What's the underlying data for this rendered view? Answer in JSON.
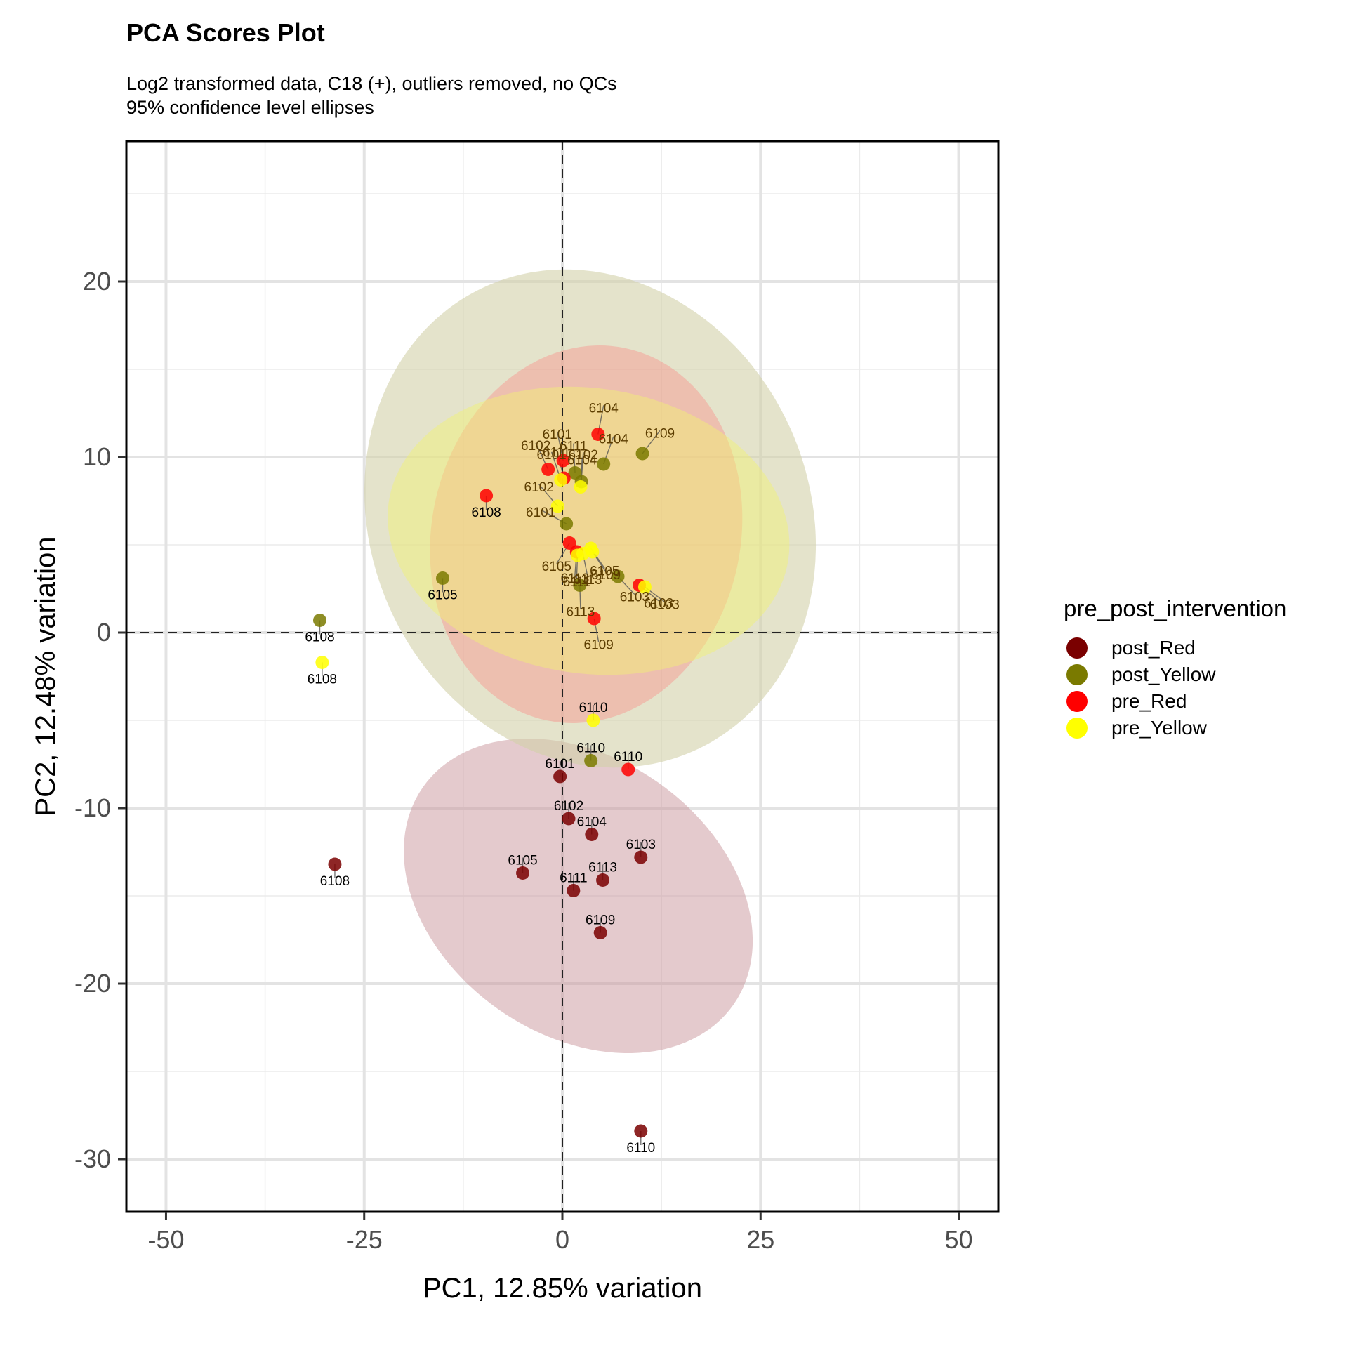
{
  "chart_data": {
    "type": "scatter",
    "title": "PCA Scores Plot",
    "subtitle": [
      "Log2 transformed data, C18 (+), outliers removed, no QCs",
      "95% confidence level ellipses"
    ],
    "xlabel": "PC1, 12.85% variation",
    "ylabel": "PC2, 12.48% variation",
    "xlim": [
      -55,
      55
    ],
    "ylim": [
      -33,
      28
    ],
    "xticks": [
      -50,
      -25,
      0,
      25,
      50
    ],
    "yticks": [
      -30,
      -20,
      -10,
      0,
      10,
      20
    ],
    "grid": true,
    "reference_lines": {
      "x": 0,
      "y": 0,
      "style": "dashed"
    },
    "legend": {
      "title": "pre_post_intervention",
      "position": "right"
    },
    "series": [
      {
        "name": "post_Red",
        "color": "#7a0000",
        "ellipse": {
          "cx": 2,
          "cy": -15,
          "rx": 17.5,
          "ry": 10.8,
          "angle_deg": 55,
          "fill": "#c9959c",
          "opacity": 0.5
        },
        "points": [
          {
            "x": -0.3,
            "y": -8.2,
            "label": "6101"
          },
          {
            "x": 0.8,
            "y": -10.6,
            "label": "6102"
          },
          {
            "x": 9.9,
            "y": -12.8,
            "label": "6103"
          },
          {
            "x": 3.7,
            "y": -11.5,
            "label": "6104"
          },
          {
            "x": -5.0,
            "y": -13.7,
            "label": "6105"
          },
          {
            "x": -28.7,
            "y": -13.2,
            "label": "6108"
          },
          {
            "x": 4.8,
            "y": -17.1,
            "label": "6109"
          },
          {
            "x": 9.9,
            "y": -28.4,
            "label": "6110"
          },
          {
            "x": 1.4,
            "y": -14.7,
            "label": "6111"
          },
          {
            "x": 5.1,
            "y": -14.1,
            "label": "6113"
          }
        ]
      },
      {
        "name": "post_Yellow",
        "color": "#7a7a00",
        "ellipse": {
          "cx": 3.5,
          "cy": 6.5,
          "rx": 27.7,
          "ry": 14.5,
          "angle_deg": 24,
          "fill": "#d2d1a8",
          "opacity": 0.6
        },
        "points": [
          {
            "x": 0.5,
            "y": 6.2,
            "label": "6101"
          },
          {
            "x": 2.4,
            "y": 8.6,
            "label": "6102"
          },
          {
            "x": 7.0,
            "y": 3.2,
            "label": "6103"
          },
          {
            "x": 5.2,
            "y": 9.6,
            "label": "6104"
          },
          {
            "x": -15.1,
            "y": 3.1,
            "label": "6105"
          },
          {
            "x": -30.6,
            "y": 0.7,
            "label": "6108"
          },
          {
            "x": 10.1,
            "y": 10.2,
            "label": "6109"
          },
          {
            "x": 3.6,
            "y": -7.3,
            "label": "6110"
          },
          {
            "x": 1.6,
            "y": 9.1,
            "label": "6111"
          },
          {
            "x": 2.2,
            "y": 2.7,
            "label": "6113"
          }
        ]
      },
      {
        "name": "pre_Red",
        "color": "#ff0000",
        "ellipse": {
          "cx": 3,
          "cy": 5.6,
          "rx": 24,
          "ry": 8.8,
          "angle_deg": 78,
          "fill": "#ff7a7a",
          "opacity": 0.35
        },
        "points": [
          {
            "x": 0.1,
            "y": 9.8,
            "label": "6101"
          },
          {
            "x": -1.8,
            "y": 9.3,
            "label": "6102"
          },
          {
            "x": 9.7,
            "y": 2.7,
            "label": "6103"
          },
          {
            "x": 4.5,
            "y": 11.3,
            "label": "6104"
          },
          {
            "x": 0.9,
            "y": 5.1,
            "label": "6105"
          },
          {
            "x": -9.6,
            "y": 7.8,
            "label": "6108"
          },
          {
            "x": 4.0,
            "y": 0.8,
            "label": "6109"
          },
          {
            "x": 8.3,
            "y": -7.8,
            "label": "6110"
          },
          {
            "x": 0.2,
            "y": 8.8,
            "label": "6111"
          },
          {
            "x": 1.8,
            "y": 4.6,
            "label": "6113"
          }
        ]
      },
      {
        "name": "pre_Yellow",
        "color": "#ffff00",
        "ellipse": {
          "cx": 3.3,
          "cy": 5.8,
          "rx": 18,
          "ry": 11.5,
          "angle_deg": 82,
          "fill": "#f2f270",
          "opacity": 0.45
        },
        "points": [
          {
            "x": -0.2,
            "y": 8.7,
            "label": "6101"
          },
          {
            "x": -0.6,
            "y": 7.2,
            "label": "6102"
          },
          {
            "x": 10.4,
            "y": 2.6,
            "label": "6103"
          },
          {
            "x": 2.3,
            "y": 8.3,
            "label": "6104"
          },
          {
            "x": 3.6,
            "y": 4.8,
            "label": "6105"
          },
          {
            "x": -30.3,
            "y": -1.7,
            "label": "6108"
          },
          {
            "x": 3.8,
            "y": 4.6,
            "label": "6109"
          },
          {
            "x": 3.9,
            "y": -5.0,
            "label": "6110"
          },
          {
            "x": 1.9,
            "y": 4.4,
            "label": "6111"
          },
          {
            "x": 2.6,
            "y": 4.5,
            "label": "6113"
          }
        ]
      }
    ]
  }
}
